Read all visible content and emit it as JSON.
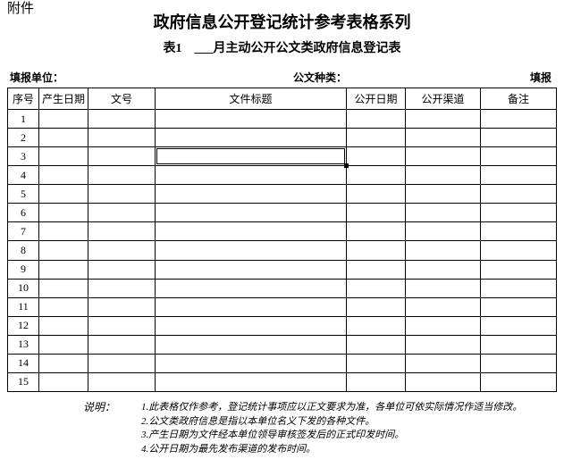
{
  "page": {
    "attachment_label": "附件",
    "title": "政府信息公开登记统计参考表格系列",
    "subtitle": "表1　___月主动公开公文类政府信息登记表"
  },
  "info_line": {
    "unit_label": "填报单位：",
    "doc_type_label": "公文种类：",
    "right_label": "填报"
  },
  "table": {
    "columns": [
      {
        "key": "index",
        "label": "序号"
      },
      {
        "key": "create_date",
        "label": "产生日期"
      },
      {
        "key": "doc_number",
        "label": "文号"
      },
      {
        "key": "doc_title",
        "label": "文件标题"
      },
      {
        "key": "publish_date",
        "label": "公开日期"
      },
      {
        "key": "publish_channel",
        "label": "公开渠道"
      },
      {
        "key": "remarks",
        "label": "备注"
      }
    ],
    "row_numbers": [
      1,
      2,
      3,
      4,
      5,
      6,
      7,
      8,
      9,
      10,
      11,
      12,
      13,
      14,
      15
    ],
    "cell_values": "",
    "selected_cell": {
      "row_number": 3,
      "column_key": "doc_title",
      "column_label": "文件标题"
    }
  },
  "notes": {
    "label": "说明：",
    "items": [
      "1.此表格仅作参考，登记统计事项应以正文要求为准，各单位可依实际情况作适当修改。",
      "2.公文类政府信息是指以本单位名义下发的各种文件。",
      "3.产生日期为文件经本单位领导审核签发后的正式印发时间。",
      "4.公开日期为最先发布渠道的发布时间。"
    ]
  },
  "colors": {
    "background": "#ffffff",
    "text": "#000000",
    "grid": "#000000"
  }
}
